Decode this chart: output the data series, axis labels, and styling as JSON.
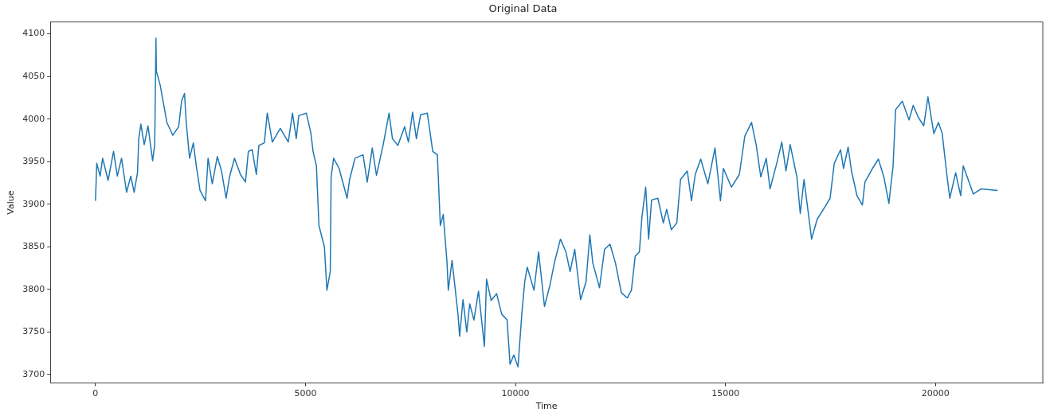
{
  "chart_data": {
    "type": "line",
    "title": "Original Data",
    "xlabel": "Time",
    "ylabel": "Value",
    "xlim": [
      -1075,
      22555
    ],
    "ylim": [
      3690,
      4114
    ],
    "xticks": [
      0,
      5000,
      10000,
      15000,
      20000
    ],
    "yticks": [
      3700,
      3750,
      3800,
      3850,
      3900,
      3950,
      4000,
      4050,
      4100
    ],
    "grid": false,
    "legend": false,
    "marker": "none",
    "line_style": "solid",
    "series": [
      {
        "color": "#1f77b4",
        "x": [
          0,
          30,
          110,
          170,
          300,
          430,
          520,
          620,
          740,
          840,
          920,
          1000,
          1030,
          1080,
          1160,
          1250,
          1360,
          1410,
          1440,
          1450,
          1540,
          1700,
          1840,
          1980,
          2050,
          2120,
          2160,
          2240,
          2330,
          2400,
          2490,
          2620,
          2680,
          2780,
          2900,
          3000,
          3110,
          3190,
          3310,
          3450,
          3570,
          3640,
          3730,
          3830,
          3890,
          4020,
          4090,
          4210,
          4400,
          4590,
          4690,
          4780,
          4840,
          5020,
          5130,
          5180,
          5260,
          5320,
          5450,
          5510,
          5590,
          5610,
          5670,
          5800,
          5990,
          6050,
          6180,
          6370,
          6470,
          6590,
          6690,
          6850,
          6990,
          7070,
          7200,
          7360,
          7450,
          7550,
          7640,
          7740,
          7900,
          8030,
          8140,
          8210,
          8280,
          8370,
          8400,
          8490,
          8630,
          8670,
          8750,
          8840,
          8910,
          9010,
          9120,
          9260,
          9310,
          9420,
          9550,
          9670,
          9800,
          9870,
          9960,
          10060,
          10150,
          10220,
          10280,
          10440,
          10550,
          10690,
          10820,
          10930,
          11070,
          11200,
          11300,
          11410,
          11550,
          11680,
          11770,
          11840,
          12000,
          12120,
          12250,
          12380,
          12520,
          12660,
          12760,
          12850,
          12950,
          13010,
          13100,
          13170,
          13240,
          13390,
          13520,
          13600,
          13710,
          13840,
          13930,
          14090,
          14190,
          14280,
          14410,
          14580,
          14750,
          14880,
          14950,
          15140,
          15330,
          15460,
          15620,
          15730,
          15840,
          15970,
          16060,
          16220,
          16340,
          16440,
          16540,
          16700,
          16780,
          16870,
          17050,
          17180,
          17370,
          17490,
          17590,
          17740,
          17810,
          17920,
          18000,
          18130,
          18260,
          18320,
          18500,
          18640,
          18770,
          18890,
          18990,
          19050,
          19210,
          19370,
          19470,
          19590,
          19720,
          19820,
          19960,
          20070,
          20160,
          20260,
          20340,
          20480,
          20600,
          20660,
          20800,
          20900,
          21090,
          21480
        ],
        "values": [
          3904,
          3948,
          3933,
          3954,
          3928,
          3962,
          3933,
          3954,
          3914,
          3933,
          3914,
          3937,
          3977,
          3994,
          3970,
          3992,
          3951,
          3970,
          4095,
          4056,
          4040,
          3996,
          3981,
          3991,
          4021,
          4030,
          3996,
          3954,
          3972,
          3945,
          3916,
          3904,
          3954,
          3924,
          3956,
          3939,
          3907,
          3932,
          3954,
          3935,
          3926,
          3962,
          3964,
          3935,
          3969,
          3972,
          4007,
          3973,
          3989,
          3973,
          4007,
          3977,
          4004,
          4007,
          3983,
          3962,
          3945,
          3875,
          3850,
          3799,
          3821,
          3932,
          3954,
          3942,
          3907,
          3929,
          3954,
          3958,
          3926,
          3966,
          3934,
          3970,
          4007,
          3977,
          3969,
          3991,
          3973,
          4008,
          3977,
          4005,
          4007,
          3962,
          3958,
          3875,
          3888,
          3831,
          3799,
          3834,
          3771,
          3745,
          3788,
          3750,
          3783,
          3764,
          3798,
          3733,
          3812,
          3787,
          3795,
          3771,
          3764,
          3712,
          3723,
          3709,
          3771,
          3809,
          3826,
          3799,
          3844,
          3780,
          3805,
          3832,
          3859,
          3844,
          3821,
          3847,
          3788,
          3809,
          3864,
          3831,
          3802,
          3847,
          3853,
          3831,
          3796,
          3790,
          3799,
          3839,
          3844,
          3885,
          3920,
          3859,
          3905,
          3907,
          3878,
          3894,
          3870,
          3878,
          3929,
          3939,
          3904,
          3935,
          3953,
          3924,
          3966,
          3904,
          3942,
          3920,
          3935,
          3980,
          3996,
          3970,
          3932,
          3954,
          3918,
          3948,
          3973,
          3939,
          3970,
          3932,
          3889,
          3929,
          3859,
          3882,
          3897,
          3907,
          3948,
          3964,
          3942,
          3967,
          3939,
          3910,
          3899,
          3926,
          3942,
          3953,
          3932,
          3901,
          3945,
          4011,
          4021,
          3999,
          4016,
          4002,
          3992,
          4026,
          3983,
          3996,
          3983,
          3939,
          3907,
          3937,
          3910,
          3945,
          3926,
          3912,
          3918,
          3916
        ]
      }
    ]
  }
}
